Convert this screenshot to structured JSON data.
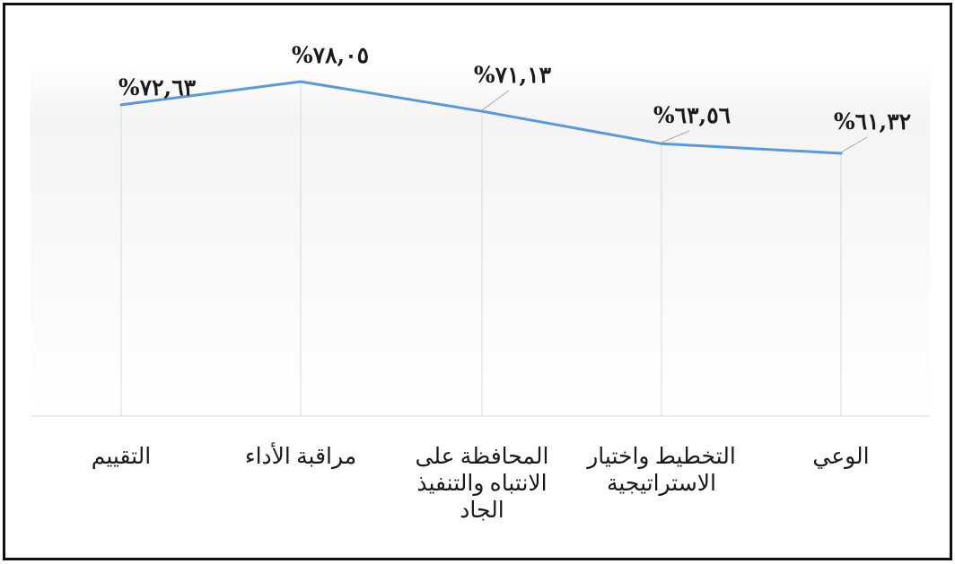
{
  "chart_data": {
    "type": "line",
    "categories": [
      "التقييم",
      "مراقبة الأداء",
      "المحافظة على الانتباه والتنفيذ الجاد",
      "التخطيط واختيار الاستراتيجية",
      "الوعي"
    ],
    "category_lines": [
      [
        "التقييم"
      ],
      [
        "مراقبة الأداء"
      ],
      [
        "المحافظة  على",
        "الانتباه والتنفيذ",
        "الجاد"
      ],
      [
        "التخطيط واختيار",
        "الاستراتيجية"
      ],
      [
        "الوعي"
      ]
    ],
    "values": [
      72.63,
      78.05,
      71.13,
      63.56,
      61.32
    ],
    "data_labels": [
      "%٧٢,٦٣",
      "%٧٨,٠٥",
      "%٧١,١٣",
      "%٦٣,٥٦",
      "%٦١,٣٢"
    ],
    "title": "",
    "xlabel": "",
    "ylabel": "",
    "ylim": [
      0,
      85
    ],
    "grid": "vertical",
    "legend": "none",
    "colors": {
      "line": "#5B9BD5",
      "grid": "#d9d9d9",
      "leader": "#a6a6a6",
      "text": "#1a1a1a",
      "frame": "#111111"
    }
  }
}
